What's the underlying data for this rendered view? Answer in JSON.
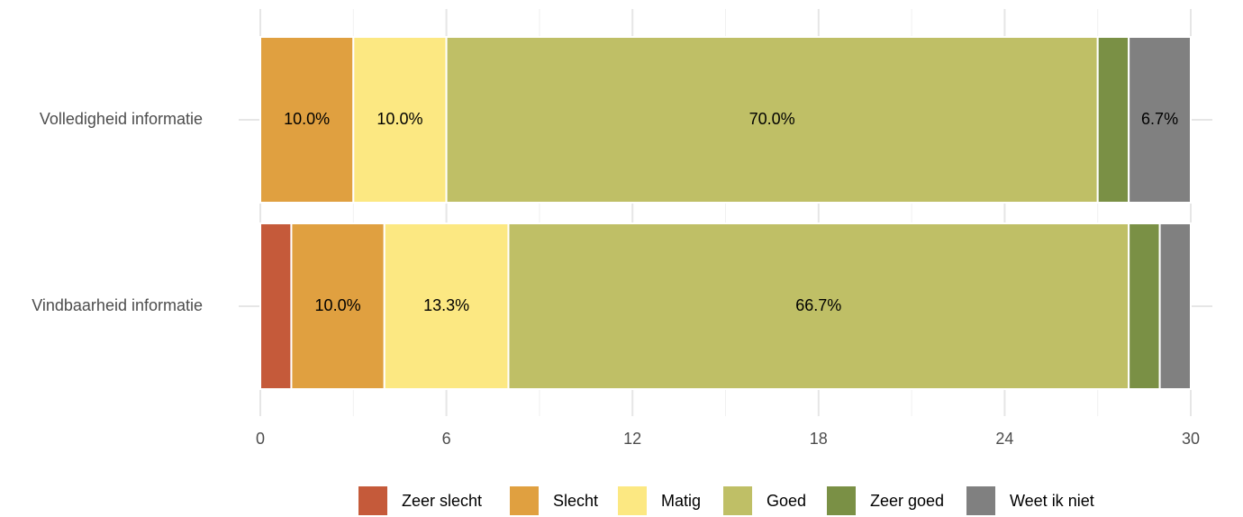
{
  "chart_data": {
    "type": "stacked_barh",
    "categories": [
      "Volledigheid informatie",
      "Vindbaarheid informatie"
    ],
    "series": [
      {
        "name": "Zeer slecht",
        "color": "#c55a3a",
        "values": [
          0,
          1
        ],
        "value_labels": [
          null,
          null
        ]
      },
      {
        "name": "Slecht",
        "color": "#e0a040",
        "values": [
          3,
          3
        ],
        "value_labels": [
          "10.0%",
          "10.0%"
        ]
      },
      {
        "name": "Matig",
        "color": "#fce882",
        "values": [
          3,
          4
        ],
        "value_labels": [
          "10.0%",
          "13.3%"
        ]
      },
      {
        "name": "Goed",
        "color": "#bfbf66",
        "values": [
          21,
          20
        ],
        "value_labels": [
          "70.0%",
          "66.7%"
        ]
      },
      {
        "name": "Zeer goed",
        "color": "#7a9045",
        "values": [
          1,
          1
        ],
        "value_labels": [
          null,
          null
        ]
      },
      {
        "name": "Weet ik niet",
        "color": "#808080",
        "values": [
          2,
          1
        ],
        "value_labels": [
          "6.7%",
          null
        ]
      }
    ],
    "xlim": [
      0,
      30
    ],
    "xticks": [
      0,
      6,
      12,
      18,
      24,
      30
    ],
    "grid": true,
    "legend": "bottom"
  }
}
